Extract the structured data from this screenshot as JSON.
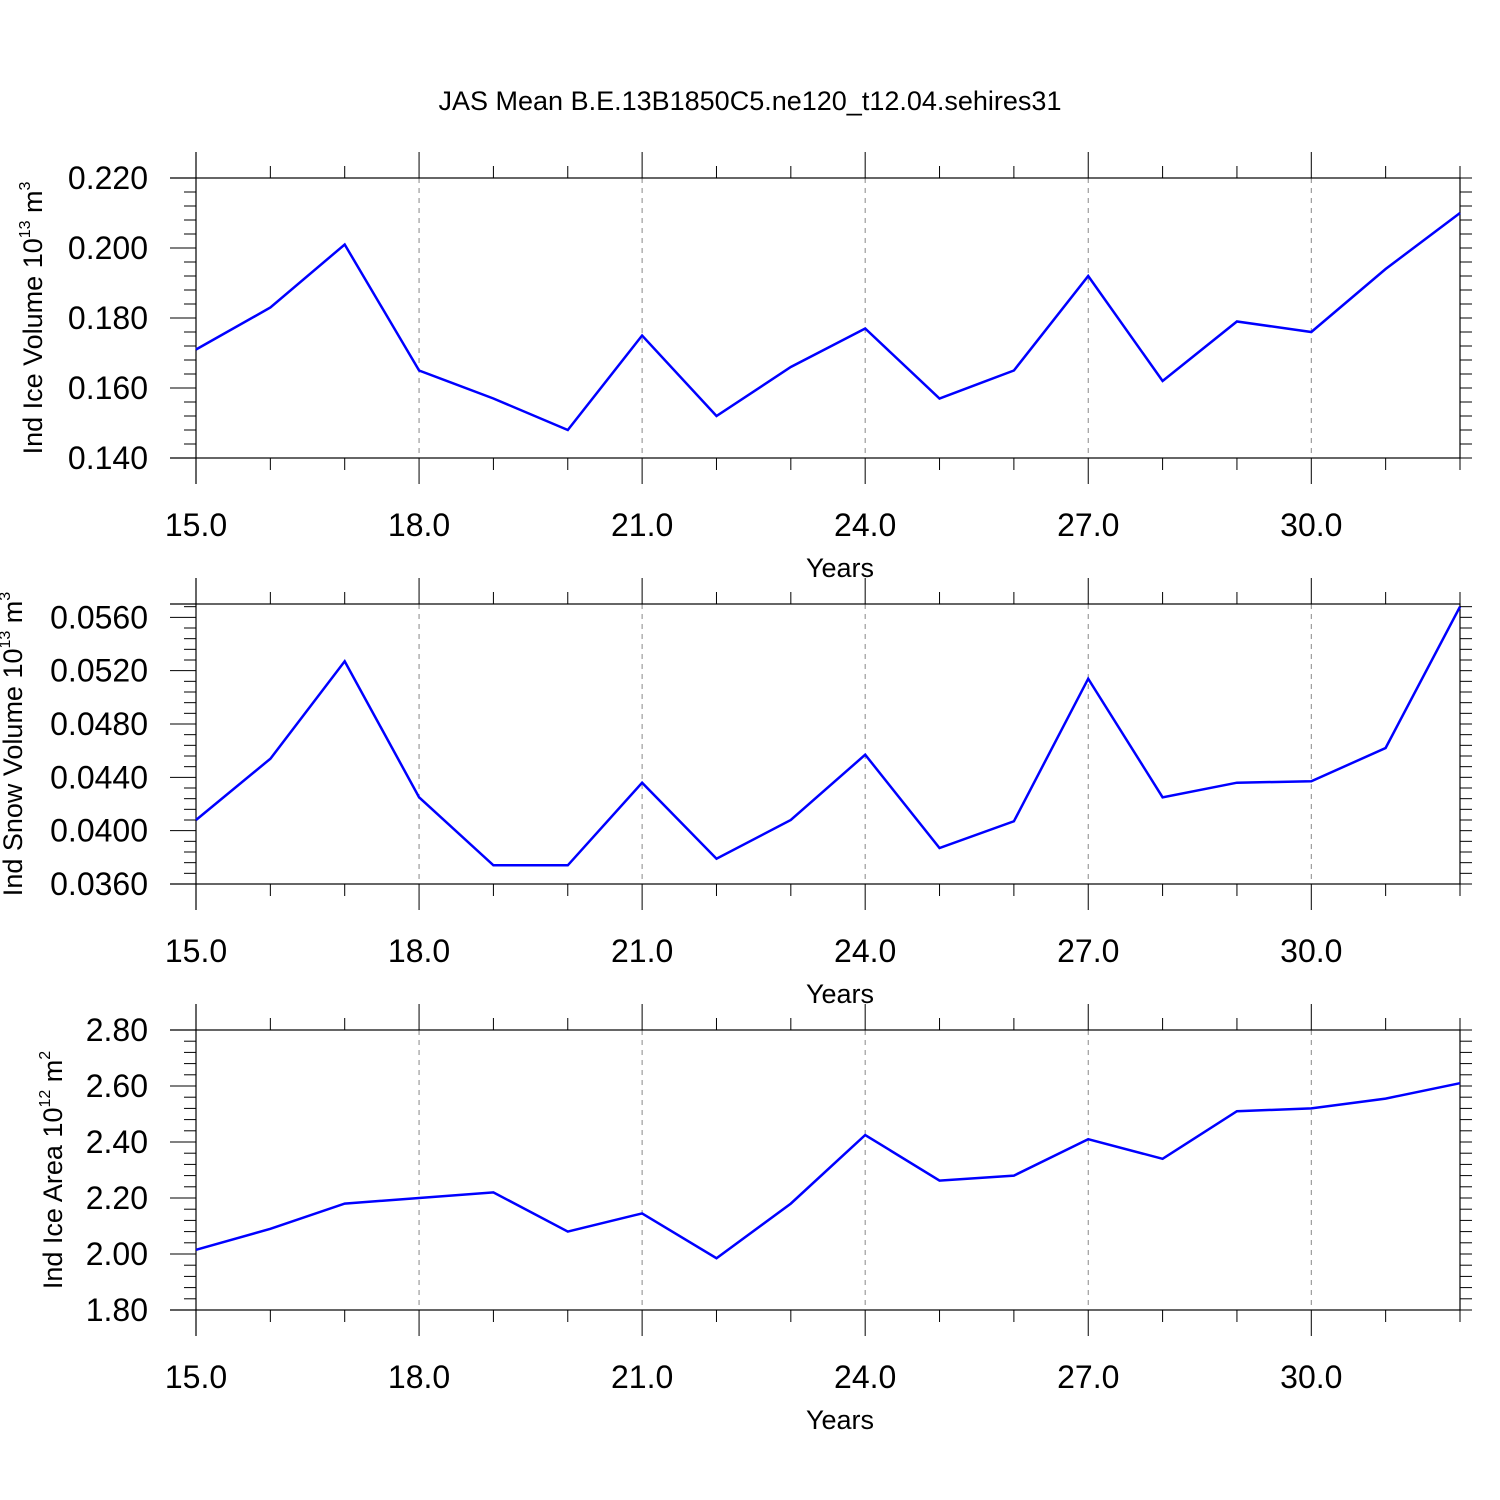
{
  "title": "JAS Mean B.E.13B1850C5.ne120_t12.04.sehires31",
  "colors": {
    "line": "#0000ff",
    "axis": "#000000",
    "grid": "#888888"
  },
  "chart_data": [
    {
      "type": "line",
      "ylabel": {
        "prefix": "Ind Ice Volume 10",
        "exp": "13",
        "unit": " m",
        "unit_exp": "3"
      },
      "xlabel": "Years",
      "xlim": [
        15,
        32
      ],
      "ylim": [
        0.14,
        0.22
      ],
      "x_ticks": [
        "15.0",
        "18.0",
        "21.0",
        "24.0",
        "27.0",
        "30.0"
      ],
      "y_ticks": [
        "0.140",
        "0.160",
        "0.180",
        "0.200",
        "0.220"
      ],
      "x_minor_step": 1,
      "y_minor_step": 0.004,
      "x": [
        15,
        16,
        17,
        18,
        19,
        20,
        21,
        22,
        23,
        24,
        25,
        26,
        27,
        28,
        29,
        30,
        31,
        32
      ],
      "series": [
        {
          "values": [
            0.171,
            0.183,
            0.201,
            0.165,
            0.157,
            0.148,
            0.175,
            0.152,
            0.166,
            0.177,
            0.157,
            0.165,
            0.192,
            0.162,
            0.179,
            0.176,
            0.194,
            0.21
          ]
        }
      ],
      "grid": "vertical dashed at major x ticks"
    },
    {
      "type": "line",
      "ylabel": {
        "prefix": "Ind Snow Volume 10",
        "exp": "13",
        "unit": " m",
        "unit_exp": "3"
      },
      "xlabel": "Years",
      "xlim": [
        15,
        32
      ],
      "ylim": [
        0.036,
        0.057
      ],
      "x_ticks": [
        "15.0",
        "18.0",
        "21.0",
        "24.0",
        "27.0",
        "30.0"
      ],
      "y_ticks": [
        "0.0360",
        "0.0400",
        "0.0440",
        "0.0480",
        "0.0520",
        "0.0560"
      ],
      "x_minor_step": 1,
      "y_minor_step": 0.0008,
      "x": [
        15,
        16,
        17,
        18,
        19,
        20,
        21,
        22,
        23,
        24,
        25,
        26,
        27,
        28,
        29,
        30,
        31,
        32
      ],
      "series": [
        {
          "values": [
            0.0408,
            0.0454,
            0.0527,
            0.0425,
            0.0374,
            0.0374,
            0.0436,
            0.0379,
            0.0408,
            0.0457,
            0.0387,
            0.0407,
            0.0514,
            0.0425,
            0.0436,
            0.0437,
            0.0462,
            0.0568
          ]
        }
      ],
      "grid": "vertical dashed at major x ticks"
    },
    {
      "type": "line",
      "ylabel": {
        "prefix": "Ind Ice Area 10",
        "exp": "12",
        "unit": " m",
        "unit_exp": "2"
      },
      "xlabel": "Years",
      "xlim": [
        15,
        32
      ],
      "ylim": [
        1.8,
        2.8
      ],
      "x_ticks": [
        "15.0",
        "18.0",
        "21.0",
        "24.0",
        "27.0",
        "30.0"
      ],
      "y_ticks": [
        "1.80",
        "2.00",
        "2.20",
        "2.40",
        "2.60",
        "2.80"
      ],
      "x_minor_step": 1,
      "y_minor_step": 0.04,
      "x": [
        15,
        16,
        17,
        18,
        19,
        20,
        21,
        22,
        23,
        24,
        25,
        26,
        27,
        28,
        29,
        30,
        31,
        32
      ],
      "series": [
        {
          "values": [
            2.015,
            2.09,
            2.18,
            2.2,
            2.22,
            2.08,
            2.145,
            1.985,
            2.18,
            2.425,
            2.262,
            2.28,
            2.41,
            2.34,
            2.51,
            2.52,
            2.555,
            2.61
          ]
        }
      ],
      "grid": "vertical dashed at major x ticks"
    }
  ]
}
